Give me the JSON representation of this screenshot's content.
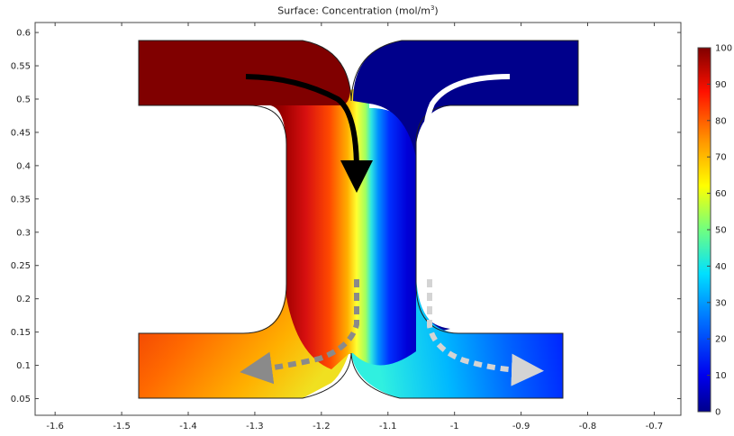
{
  "chart_data": {
    "type": "heatmap",
    "title": "Surface: Concentration (mol/m",
    "title_sup": "3",
    "title_suffix": ")",
    "xlim": [
      -1.63,
      -0.66
    ],
    "ylim": [
      0.025,
      0.615
    ],
    "x_ticks": [
      "-1.6",
      "-1.5",
      "-1.4",
      "-1.3",
      "-1.2",
      "-1.1",
      "-1",
      "-0.9",
      "-0.8",
      "-0.7"
    ],
    "x_tick_values": [
      -1.6,
      -1.5,
      -1.4,
      -1.3,
      -1.2,
      -1.1,
      -1.0,
      -0.9,
      -0.8,
      -0.7
    ],
    "y_ticks": [
      "0.6",
      "0.55",
      "0.5",
      "0.45",
      "0.4",
      "0.35",
      "0.3",
      "0.25",
      "0.2",
      "0.15",
      "0.1",
      "0.05"
    ],
    "y_tick_values": [
      0.6,
      0.55,
      0.5,
      0.45,
      0.4,
      0.35,
      0.3,
      0.25,
      0.2,
      0.15,
      0.1,
      0.05
    ],
    "colorbar": {
      "range": [
        0,
        100
      ],
      "ticks": [
        "100",
        "90",
        "80",
        "70",
        "60",
        "50",
        "40",
        "30",
        "20",
        "10",
        "0"
      ],
      "tick_values": [
        100,
        90,
        80,
        70,
        60,
        50,
        40,
        30,
        20,
        10,
        0
      ],
      "colormap": "rainbow (dark red = high, dark blue = low)"
    },
    "grid": false,
    "regions": [
      {
        "name": "left inlet",
        "concentration": 100
      },
      {
        "name": "right inlet",
        "concentration": 0
      },
      {
        "name": "left outlet",
        "concentration_range": [
          62,
          92
        ]
      },
      {
        "name": "right outlet",
        "concentration_range": [
          10,
          38
        ]
      }
    ],
    "annotations": [
      {
        "type": "solid black arrow",
        "meaning": "inflow left"
      },
      {
        "type": "solid white arrow",
        "meaning": "inflow right"
      },
      {
        "type": "dashed grey arrow",
        "meaning": "outflow left"
      },
      {
        "type": "dashed light grey arrow",
        "meaning": "outflow right"
      }
    ]
  },
  "colors": {
    "dark_red": "#800000",
    "red": "#e01010",
    "orange": "#ff9900",
    "yellow": "#ffff30",
    "cyan": "#30e8e0",
    "blue": "#0030ff",
    "dark_blue": "#00008b",
    "arrow_black": "#000000",
    "arrow_white": "#ffffff",
    "arrow_grey": "#8a8a8a",
    "arrow_light_grey": "#d4d4d4"
  }
}
